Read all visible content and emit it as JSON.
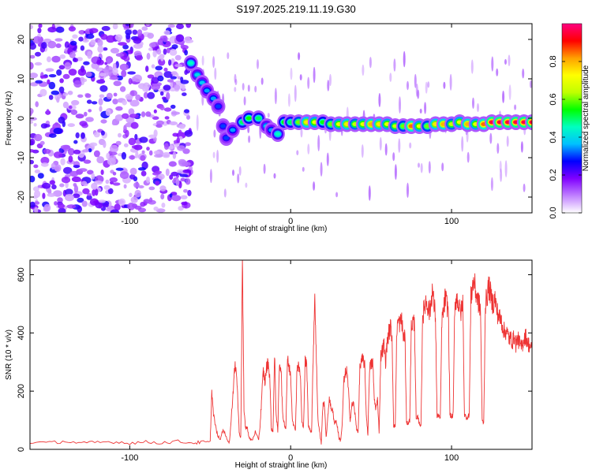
{
  "title": "S197.2025.219.11.19.G30",
  "chart_data": [
    {
      "type": "heatmap",
      "xlabel": "Height of straight line (km)",
      "ylabel": "Frequency (Hz)",
      "xlim": [
        -162,
        150
      ],
      "ylim": [
        -24,
        24
      ],
      "x_ticks": [
        -100,
        0,
        100
      ],
      "y_ticks": [
        20,
        10,
        0,
        -10,
        -20
      ],
      "colorbar": {
        "label": "Normalized spectral amplitude",
        "range": [
          0,
          1
        ],
        "ticks": [
          "0.0",
          "0.2",
          "0.4",
          "0.6",
          "0.8"
        ],
        "tick_values": [
          0.0,
          0.2,
          0.4,
          0.6,
          0.8
        ],
        "colors": [
          "#ffffff",
          "#c080ff",
          "#8000ff",
          "#0000ff",
          "#00c0ff",
          "#00ffc0",
          "#00ff00",
          "#c0ff00",
          "#ffff00",
          "#ffa000",
          "#ff0000",
          "#ff0080"
        ]
      },
      "noise_region": {
        "x_range": [
          -162,
          -62
        ],
        "freq_range": [
          -24,
          24
        ]
      },
      "ridge": {
        "x": [
          -62,
          -58,
          -55,
          -52,
          -48,
          -45,
          -42,
          -40,
          -36,
          -30,
          -26,
          -20,
          -15,
          -12,
          -8,
          -4,
          0,
          5,
          10,
          15,
          20,
          25,
          30,
          35,
          40,
          45,
          50,
          55,
          60,
          65,
          70,
          75,
          80,
          85,
          90,
          95,
          100,
          105,
          110,
          115,
          120,
          125,
          130,
          135,
          140,
          145,
          150
        ],
        "freq": [
          14,
          11,
          9,
          7,
          5,
          3,
          -2,
          -5,
          -3,
          -1,
          0,
          0,
          -2,
          -3,
          -4,
          -1,
          -1,
          -1,
          -1,
          -1,
          -1,
          -1.5,
          -1.5,
          -1.5,
          -1.5,
          -1.5,
          -1.5,
          -1.5,
          -1.5,
          -2,
          -2,
          -2,
          -2,
          -2,
          -1.5,
          -1.5,
          -1.5,
          -1,
          -1.5,
          -1.5,
          -1.5,
          -1,
          -1,
          -1,
          -1,
          -1,
          -1
        ],
        "amplitude": [
          0.45,
          0.4,
          0.38,
          0.35,
          0.35,
          0.3,
          0.3,
          0.3,
          0.35,
          0.5,
          0.55,
          0.5,
          0.4,
          0.35,
          0.45,
          0.55,
          0.5,
          0.6,
          0.75,
          0.7,
          0.55,
          0.6,
          0.7,
          0.75,
          0.65,
          0.7,
          0.8,
          0.75,
          0.7,
          0.65,
          0.6,
          0.85,
          0.7,
          0.6,
          0.75,
          0.8,
          0.65,
          0.7,
          0.8,
          0.7,
          0.85,
          0.95,
          0.95,
          0.95,
          0.95,
          0.95,
          0.95
        ]
      }
    },
    {
      "type": "line",
      "xlabel": "Height of straight line (km)",
      "ylabel": "SNR (10 * v/v)",
      "xlim": [
        -162,
        150
      ],
      "ylim": [
        0,
        650
      ],
      "x_ticks": [
        -100,
        0,
        100
      ],
      "y_ticks": [
        0,
        200,
        400,
        600
      ],
      "color": "#ee3333",
      "series": [
        {
          "x": [
            -162,
            -150,
            -140,
            -130,
            -120,
            -110,
            -100,
            -90,
            -80,
            -70,
            -60,
            -55,
            -50,
            -49,
            -48,
            -46,
            -44,
            -42,
            -40,
            -38,
            -36,
            -35,
            -34,
            -33,
            -32,
            -31,
            -30,
            -29,
            -28,
            -27,
            -26,
            -24,
            -22,
            -20,
            -19,
            -18,
            -17,
            -16,
            -15,
            -14,
            -13,
            -12,
            -11,
            -10,
            -9,
            -8,
            -7,
            -6,
            -5,
            -4,
            -3,
            -2,
            -1,
            0,
            1,
            2,
            3,
            4,
            5,
            6,
            7,
            8,
            9,
            10,
            11,
            12,
            13,
            14,
            15,
            16,
            17,
            18,
            19,
            20,
            21,
            22,
            23,
            24,
            25,
            26,
            27,
            28,
            29,
            30,
            31,
            32,
            33,
            34,
            35,
            36,
            37,
            38,
            39,
            40,
            41,
            42,
            43,
            44,
            45,
            46,
            47,
            48,
            49,
            50,
            51,
            52,
            53,
            54,
            55,
            56,
            57,
            58,
            59,
            60,
            61,
            62,
            63,
            64,
            65,
            66,
            67,
            68,
            69,
            70,
            71,
            72,
            73,
            74,
            75,
            76,
            77,
            78,
            79,
            80,
            81,
            82,
            83,
            84,
            85,
            86,
            87,
            88,
            89,
            90,
            91,
            92,
            93,
            94,
            95,
            96,
            97,
            98,
            99,
            100,
            101,
            102,
            103,
            104,
            105,
            106,
            107,
            108,
            109,
            110,
            111,
            112,
            113,
            114,
            115,
            116,
            117,
            118,
            119,
            120,
            121,
            122,
            123,
            124,
            125,
            126,
            127,
            128,
            129,
            130,
            131,
            132,
            133,
            134,
            135,
            136,
            137,
            138,
            139,
            140,
            141,
            142,
            143,
            144,
            145,
            146,
            147,
            148,
            149,
            150
          ],
          "y": [
            25,
            22,
            28,
            20,
            24,
            26,
            22,
            25,
            23,
            27,
            22,
            25,
            24,
            200,
            120,
            60,
            30,
            70,
            40,
            25,
            180,
            260,
            300,
            190,
            60,
            40,
            650,
            140,
            70,
            80,
            40,
            30,
            60,
            30,
            80,
            180,
            270,
            230,
            280,
            300,
            250,
            70,
            60,
            320,
            120,
            60,
            300,
            280,
            120,
            90,
            70,
            310,
            280,
            260,
            110,
            80,
            70,
            290,
            280,
            260,
            90,
            80,
            300,
            290,
            80,
            70,
            60,
            320,
            540,
            300,
            100,
            60,
            20,
            150,
            160,
            40,
            100,
            180,
            140,
            140,
            90,
            100,
            80,
            40,
            30,
            80,
            230,
            260,
            270,
            190,
            100,
            150,
            160,
            120,
            70,
            60,
            280,
            300,
            310,
            290,
            120,
            50,
            280,
            290,
            300,
            170,
            140,
            170,
            60,
            320,
            340,
            360,
            300,
            370,
            400,
            420,
            390,
            80,
            80,
            420,
            440,
            430,
            450,
            380,
            400,
            90,
            90,
            100,
            420,
            440,
            430,
            100,
            110,
            90,
            80,
            460,
            480,
            510,
            500,
            470,
            490,
            550,
            500,
            460,
            110,
            120,
            100,
            450,
            470,
            520,
            500,
            480,
            120,
            110,
            120,
            500,
            520,
            510,
            480,
            470,
            510,
            120,
            110,
            110,
            120,
            520,
            560,
            580,
            540,
            520,
            500,
            480,
            100,
            90,
            500,
            520,
            560,
            540,
            510,
            500,
            520,
            480,
            460,
            450,
            440,
            420,
            400,
            410,
            390,
            380,
            380,
            370,
            390,
            360,
            380,
            370,
            350,
            360,
            380,
            390,
            370,
            360,
            350,
            340
          ]
        }
      ]
    }
  ]
}
